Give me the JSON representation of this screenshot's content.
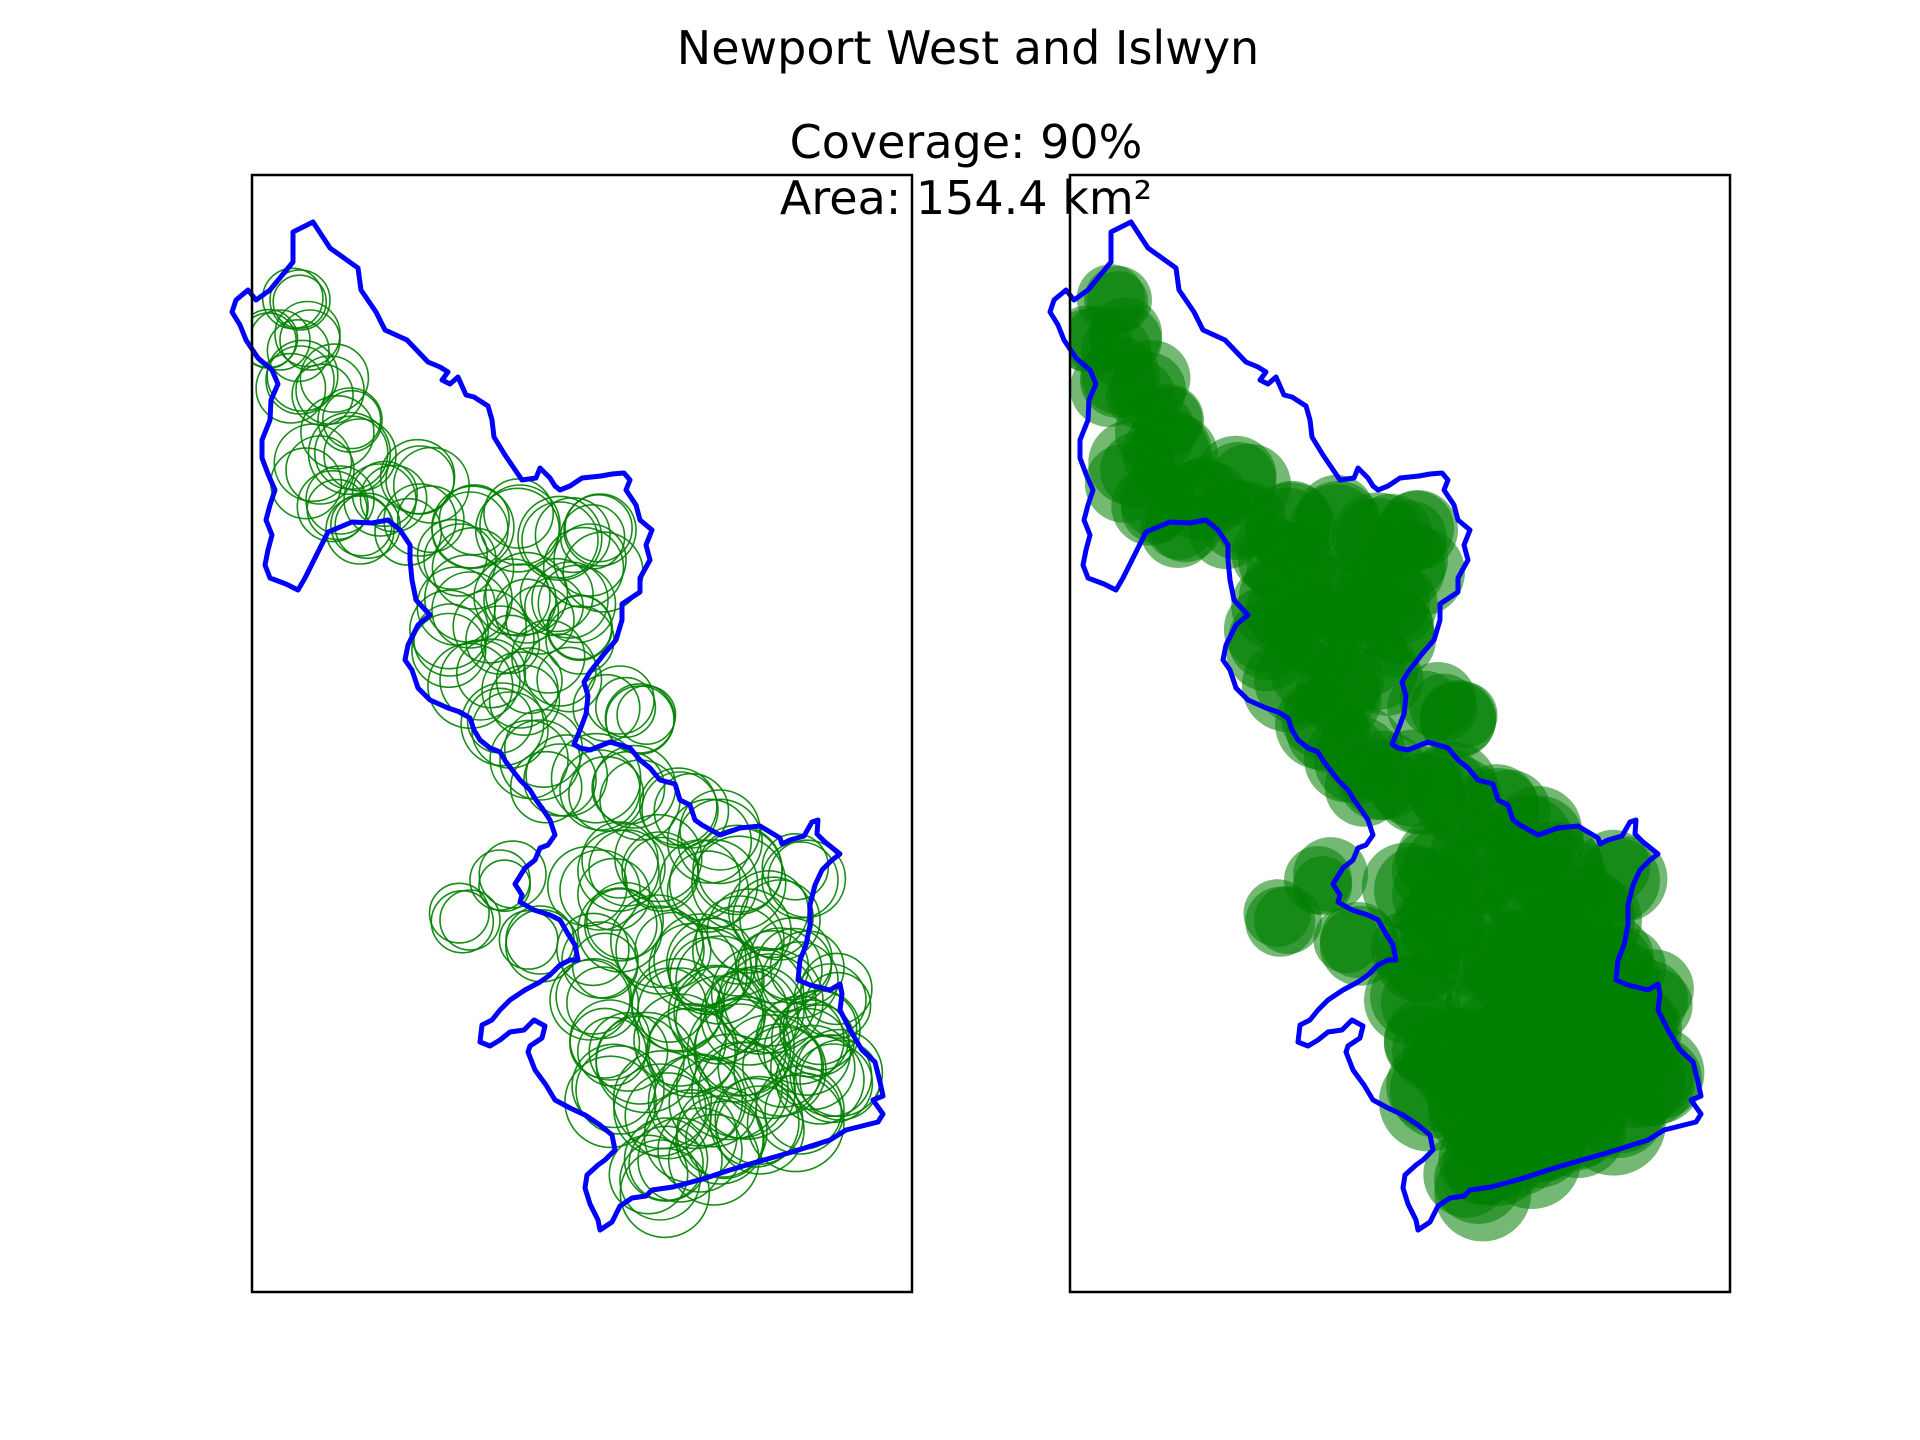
{
  "figure": {
    "title": "Newport West and Islwyn",
    "coverage_text": "Coverage: 90%",
    "area_text": "Area: 154.4 km²"
  },
  "colors": {
    "boundary": "#0000ff",
    "circles": "#008000",
    "axes_frame": "#000000",
    "background": "#ffffff"
  },
  "panels": [
    {
      "name": "left-map-panel",
      "style": "outline-circles"
    },
    {
      "name": "right-map-panel",
      "style": "filled-circles"
    }
  ]
}
